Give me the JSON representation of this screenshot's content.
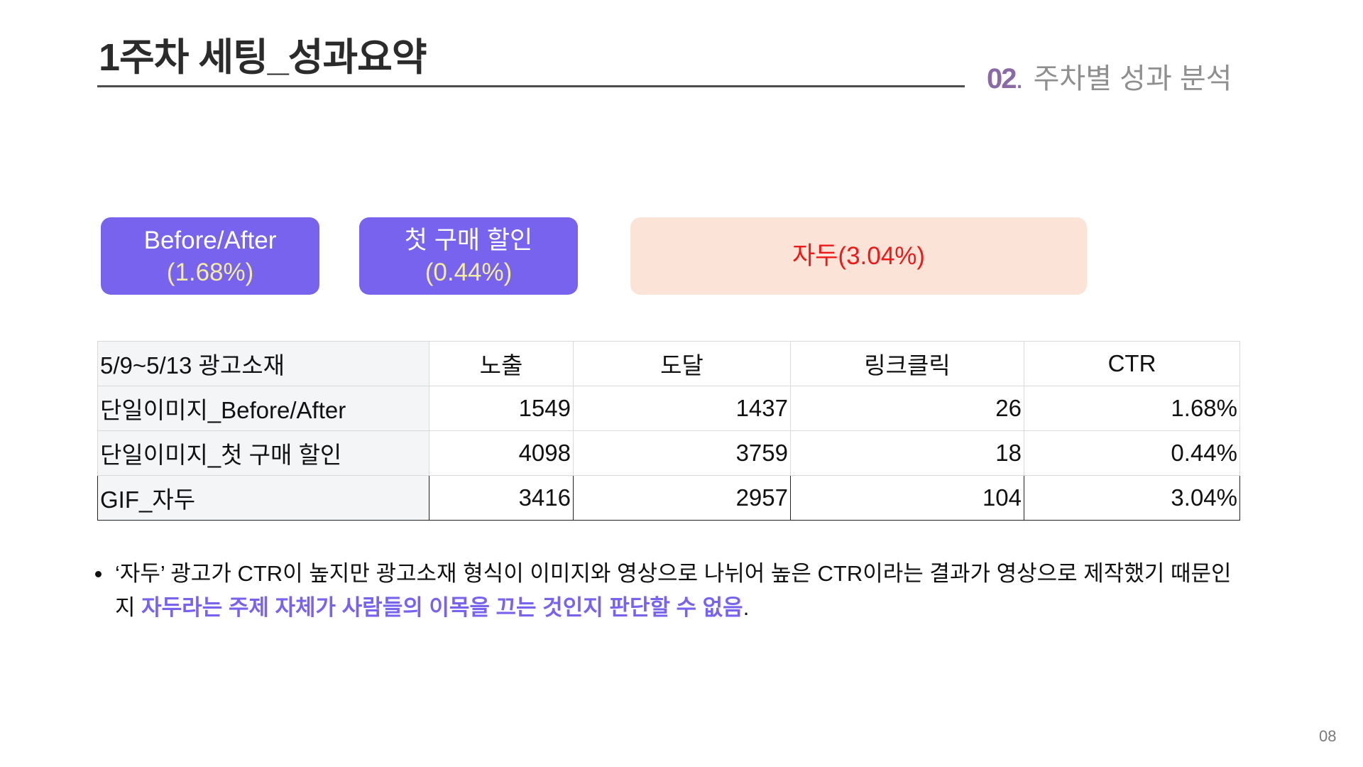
{
  "header": {
    "title": "1주차 세팅_성과요약",
    "section_number": "02",
    "section_dot": ".",
    "section_title": "주차별 성과 분석"
  },
  "tags": [
    {
      "title": "Before/After",
      "value": "(1.68%)"
    },
    {
      "title": "첫 구매 할인",
      "value": "(0.44%)"
    },
    {
      "title": "자두(3.04%)"
    }
  ],
  "table": {
    "headers": [
      "5/9~5/13 광고소재",
      "노출",
      "도달",
      "링크클릭",
      "CTR"
    ],
    "rows": [
      {
        "name": "단일이미지_Before/After",
        "impressions": "1549",
        "reach": "1437",
        "clicks": "26",
        "ctr": "1.68%"
      },
      {
        "name": "단일이미지_첫 구매 할인",
        "impressions": "4098",
        "reach": "3759",
        "clicks": "18",
        "ctr": "0.44%"
      },
      {
        "name": "GIF_자두",
        "impressions": "3416",
        "reach": "2957",
        "clicks": "104",
        "ctr": "3.04%"
      }
    ]
  },
  "note": {
    "text_plain": "‘자두’ 광고가 CTR이 높지만 광고소재 형식이 이미지와 영상으로 나뉘어 높은 CTR이라는 결과가 영상으로 제작했기 때문인지 ",
    "text_highlight": "자두라는 주제 자체가 사람들의 이목을 끄는 것인지 판단할 수 없음",
    "text_end": "."
  },
  "page_number": "08",
  "colors": {
    "accent_purple": "#7863ee",
    "tag_peach": "#fbe3d8",
    "tag_red_text": "#f01818",
    "section_purple": "#8a6aa6"
  }
}
